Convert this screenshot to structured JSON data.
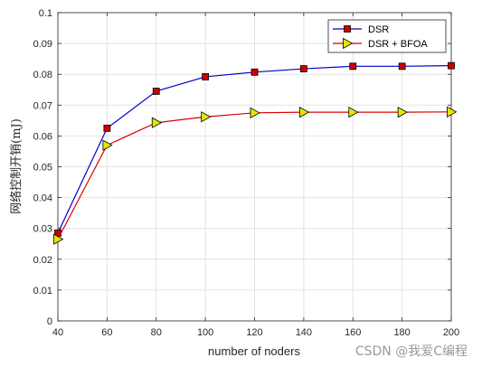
{
  "chart_data": {
    "type": "line",
    "x": [
      40,
      60,
      80,
      100,
      120,
      140,
      160,
      180,
      200
    ],
    "series": [
      {
        "name": "DSR",
        "values": [
          0.0285,
          0.0625,
          0.0745,
          0.0792,
          0.0807,
          0.0818,
          0.0826,
          0.0826,
          0.0828
        ],
        "color": "#0000cc",
        "marker": "square",
        "marker_fill": "#cc0000"
      },
      {
        "name": "DSR + BFOA",
        "values": [
          0.0265,
          0.057,
          0.0643,
          0.0662,
          0.0675,
          0.0677,
          0.0677,
          0.0677,
          0.0678
        ],
        "color": "#dd0000",
        "marker": "triangle-right",
        "marker_fill": "#e6e600"
      }
    ],
    "xlabel": "number of noders",
    "ylabel": "网络控制开销(mJ)",
    "xlim": [
      40,
      200
    ],
    "ylim": [
      0,
      0.1
    ],
    "xticks": [
      "40",
      "60",
      "80",
      "100",
      "120",
      "140",
      "160",
      "180",
      "200"
    ],
    "yticks": [
      "0",
      "0.01",
      "0.02",
      "0.03",
      "0.04",
      "0.05",
      "0.06",
      "0.07",
      "0.08",
      "0.09",
      "0.1"
    ],
    "grid": true,
    "legend_position": "top-right"
  },
  "watermark": "CSDN @我爱C编程"
}
